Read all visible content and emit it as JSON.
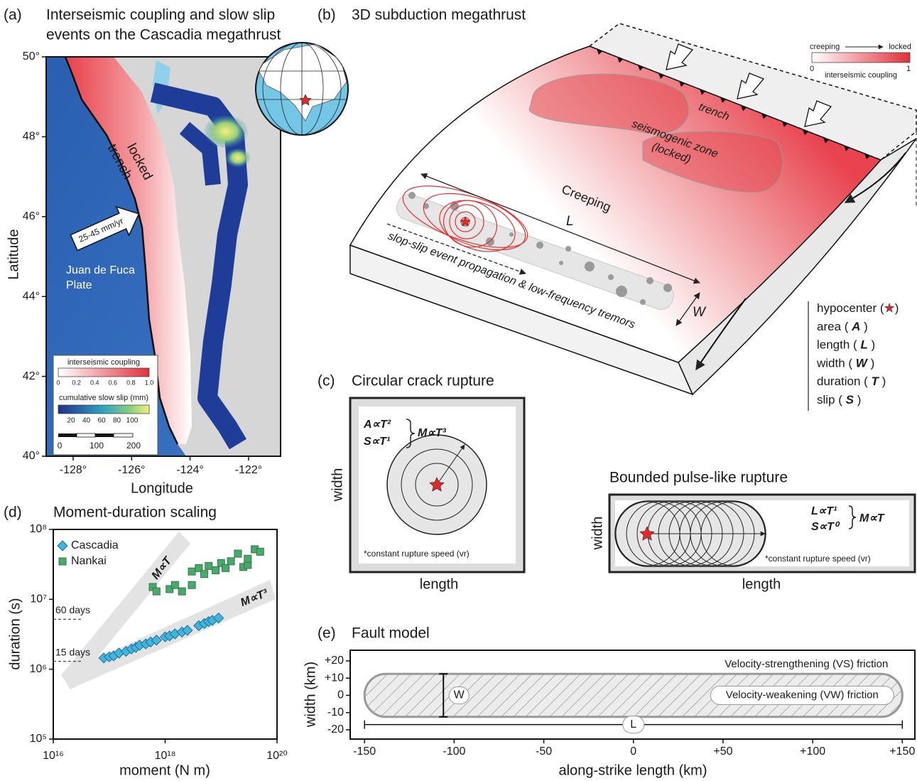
{
  "panel_a": {
    "label": "(a)",
    "title": [
      "Interseismic coupling and slow slip",
      "events on the Cascadia megathrust"
    ],
    "ylabel": "Latitude",
    "xlabel": "Longitude",
    "lat_ticks": [
      "50°",
      "48°",
      "46°",
      "44°",
      "42°",
      "40°"
    ],
    "lon_ticks": [
      "-128°",
      "-126°",
      "-124°",
      "-122°"
    ],
    "annotations": {
      "trench": "trench",
      "locked": "locked",
      "rate": "25-45 mm/yr",
      "plate": [
        "Juan de Fuca",
        "Plate"
      ]
    },
    "legend": {
      "coupling_title": "interseismic coupling",
      "coupling_ticks": [
        "0",
        "0.2",
        "0.4",
        "0.6",
        "0.8",
        "1.0"
      ],
      "slip_title": "cumulative slow slip (mm)",
      "slip_ticks": [
        "20",
        "40",
        "60",
        "80",
        "100"
      ],
      "scale_ticks": [
        "0",
        "100",
        "200"
      ]
    }
  },
  "panel_b": {
    "label": "(b)",
    "title": "3D subduction megathrust",
    "colorbar": {
      "left": "creeping",
      "right": "locked",
      "min": "0",
      "max": "1",
      "title": "interseismic coupling"
    },
    "labels": {
      "trench": "trench",
      "zone": [
        "seismogenic zone",
        "(locked)"
      ],
      "creeping": "Creeping",
      "L": "L",
      "W": "W",
      "propagation": "slop-slip event propagation & low-frequency tremors"
    },
    "legend": [
      {
        "text": "hypocenter (",
        "symbol": "★",
        "end": ")"
      },
      {
        "text": "area ( ",
        "symbol": "A",
        "end": " )"
      },
      {
        "text": "length ( ",
        "symbol": "L",
        "end": " )"
      },
      {
        "text": "width ( ",
        "symbol": "W",
        "end": " )"
      },
      {
        "text": "duration ( ",
        "symbol": "T",
        "end": " )"
      },
      {
        "text": "slip ( ",
        "symbol": "S",
        "end": " )"
      }
    ]
  },
  "panel_c": {
    "label": "(c)",
    "circular": {
      "title": "Circular crack rupture",
      "relations": [
        "A∝T²",
        "S∝T¹"
      ],
      "result": "M∝T³",
      "note": "*constant rupture speed (vr)",
      "xlabel": "length",
      "ylabel": "width"
    },
    "pulse": {
      "title": "Bounded pulse-like rupture",
      "relations": [
        "L∝T¹",
        "S∝T⁰"
      ],
      "result": "M∝T",
      "note": "*constant rupture speed (vr)",
      "xlabel": "length",
      "ylabel": "width"
    }
  },
  "chart_data": [
    {
      "type": "scatter",
      "panel_label": "(d)",
      "title": "Moment-duration scaling",
      "xlabel": "moment (N m)",
      "ylabel": "duration (s)",
      "log_x": true,
      "log_y": true,
      "xlim": [
        1e+16,
        1e+20
      ],
      "ylim": [
        100000,
        100000000
      ],
      "xticks": [
        {
          "value": 1e+16,
          "label": "10¹⁶"
        },
        {
          "value": 1e+18,
          "label": "10¹⁸"
        },
        {
          "value": 1e+20,
          "label": "10²⁰"
        }
      ],
      "yticks": [
        {
          "value": 100000,
          "label": "10⁵"
        },
        {
          "value": 1000000,
          "label": "10⁶"
        },
        {
          "value": 10000000,
          "label": "10⁷"
        },
        {
          "value": 100000000,
          "label": "10⁸"
        }
      ],
      "scaling_labels": [
        "M∝T",
        "M∝T³"
      ],
      "annotations": [
        {
          "text": "60 days",
          "value": 5184000
        },
        {
          "text": "15 days",
          "value": 1296000
        }
      ],
      "series": [
        {
          "name": "Cascadia",
          "color": "#42b5de",
          "marker": "diamond",
          "x": [
            8e+16,
            1e+17,
            1.2e+17,
            1.5e+17,
            2e+17,
            2.5e+17,
            3e+17,
            3.5e+17,
            4.5e+17,
            5.5e+17,
            7e+17,
            1e+18,
            1.2e+18,
            1.5e+18,
            2e+18,
            2.5e+18,
            4e+18,
            5e+18,
            6e+18,
            7e+18,
            9e+18
          ],
          "values": [
            1450000,
            1500000,
            1550000,
            1700000,
            1800000,
            1950000,
            2050000,
            2200000,
            2300000,
            2450000,
            2600000,
            2900000,
            3000000,
            3200000,
            3400000,
            3600000,
            4200000,
            4500000,
            4800000,
            5000000,
            5400000
          ]
        },
        {
          "name": "Nankai",
          "color": "#4aa86a",
          "marker": "square",
          "x": [
            6e+17,
            7e+17,
            1.2e+18,
            1.5e+18,
            2e+18,
            3e+18,
            3e+18,
            4e+18,
            5e+18,
            6e+18,
            8e+18,
            1e+19,
            1.2e+19,
            1.5e+19,
            2e+19,
            2.5e+19,
            3e+19,
            4e+19,
            5e+19,
            3e+19
          ],
          "values": [
            15000000,
            13000000,
            14000000,
            16000000,
            13000000,
            16000000,
            25000000,
            28000000,
            23000000,
            30000000,
            26000000,
            33000000,
            28000000,
            35000000,
            45000000,
            29000000,
            31000000,
            52000000,
            48000000,
            38000000
          ]
        }
      ]
    },
    {
      "type": "fault-model",
      "panel_label": "(e)",
      "title": "Fault model",
      "xlabel": "along-strike length (km)",
      "ylabel": "width (km)",
      "xlim": [
        -158,
        157
      ],
      "ylim": [
        -25.4,
        26.2
      ],
      "xticks": [
        -150,
        -100,
        -50,
        0,
        {
          "value": 50,
          "label": "+50"
        },
        {
          "value": 100,
          "label": "+100"
        },
        {
          "value": 150,
          "label": "+150"
        }
      ],
      "yticks": [
        {
          "value": 20,
          "label": "+20"
        },
        {
          "value": 10,
          "label": "+10"
        },
        0,
        -10,
        -20
      ],
      "fault": {
        "x": [
          -150,
          150
        ],
        "y": [
          -12.5,
          12.5
        ]
      },
      "width_marker": {
        "label": "W",
        "x": -106
      },
      "length_marker": {
        "label": "L",
        "y": -17
      },
      "regions": [
        "Velocity-strengthening (VS) friction",
        "Velocity-weakening (VW) friction"
      ]
    }
  ]
}
